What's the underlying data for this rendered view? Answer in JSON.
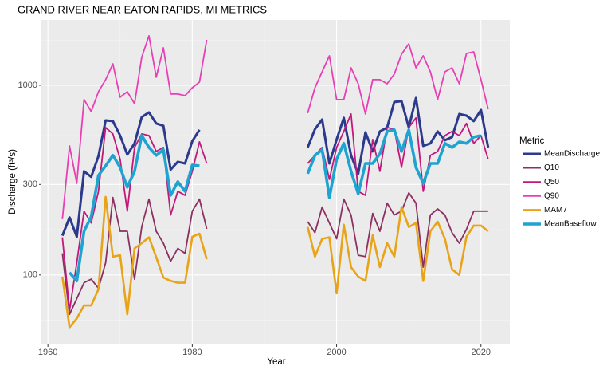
{
  "chart_data": {
    "type": "line",
    "title": "GRAND RIVER NEAR EATON RAPIDS, MI  METRICS",
    "x_label": "Year",
    "y_label": "Discharge (ft³/s)",
    "legend_title": "Metric",
    "legend_position": "right",
    "log_scale_y": true,
    "grid": true,
    "xlim": [
      1959.1,
      2024
    ],
    "xticks": [
      1960,
      1980,
      2000,
      2020
    ],
    "ylim": [
      43,
      2210
    ],
    "yticks": [
      100,
      300,
      1000
    ],
    "x": [
      1962,
      1963,
      1964,
      1965,
      1966,
      1967,
      1968,
      1969,
      1970,
      1971,
      1972,
      1973,
      1974,
      1975,
      1976,
      1977,
      1978,
      1979,
      1980,
      1981,
      1982,
      1983,
      1984,
      1985,
      1986,
      1987,
      1988,
      1989,
      1990,
      1991,
      1992,
      1993,
      1994,
      1995,
      1996,
      1997,
      1998,
      1999,
      2000,
      2001,
      2002,
      2003,
      2004,
      2005,
      2006,
      2007,
      2008,
      2009,
      2010,
      2011,
      2012,
      2013,
      2014,
      2015,
      2016,
      2017,
      2018,
      2019,
      2020,
      2021
    ],
    "series": [
      {
        "name": "MeanDischarge",
        "color": "#2b3a8c",
        "values": [
          161,
          201,
          159,
          352,
          329,
          423,
          653,
          647,
          543,
          431,
          494,
          679,
          720,
          629,
          611,
          359,
          395,
          387,
          508,
          582,
          null,
          null,
          null,
          null,
          null,
          null,
          null,
          null,
          null,
          null,
          null,
          null,
          null,
          null,
          470,
          587,
          660,
          387,
          518,
          673,
          427,
          342,
          565,
          448,
          571,
          599,
          816,
          824,
          599,
          857,
          479,
          494,
          571,
          513,
          533,
          706,
          692,
          647,
          741,
          470
        ]
      },
      {
        "name": "Q10",
        "color": "#8b3060",
        "values": [
          130,
          62,
          75,
          91,
          95,
          85,
          116,
          256,
          170,
          170,
          95,
          179,
          251,
          170,
          147,
          118,
          138,
          130,
          217,
          251,
          175,
          null,
          null,
          null,
          null,
          null,
          null,
          null,
          null,
          null,
          null,
          null,
          null,
          null,
          191,
          167,
          228,
          188,
          155,
          251,
          207,
          127,
          125,
          211,
          170,
          239,
          207,
          217,
          271,
          239,
          110,
          207,
          223,
          207,
          167,
          147,
          174,
          217,
          217,
          217
        ]
      },
      {
        "name": "Q50",
        "color": "#c2187a",
        "values": [
          158,
          65,
          116,
          217,
          188,
          276,
          599,
          554,
          407,
          217,
          470,
          554,
          543,
          448,
          470,
          207,
          276,
          263,
          352,
          503,
          387,
          null,
          null,
          null,
          null,
          null,
          null,
          null,
          null,
          null,
          null,
          null,
          null,
          null,
          387,
          427,
          470,
          319,
          470,
          571,
          706,
          276,
          263,
          518,
          352,
          599,
          587,
          369,
          599,
          673,
          276,
          427,
          448,
          543,
          571,
          543,
          629,
          494,
          543,
          407
        ]
      },
      {
        "name": "Q90",
        "color": "#e83fb5",
        "values": [
          197,
          479,
          304,
          840,
          727,
          925,
          1070,
          1297,
          865,
          925,
          800,
          1403,
          1823,
          1102,
          1575,
          899,
          899,
          882,
          971,
          1040,
          1735,
          null,
          null,
          null,
          null,
          null,
          null,
          null,
          null,
          null,
          null,
          null,
          null,
          null,
          713,
          971,
          1178,
          1430,
          840,
          840,
          1237,
          1019,
          706,
          1070,
          1070,
          1019,
          1145,
          1459,
          1653,
          1237,
          1430,
          1178,
          840,
          1178,
          1237,
          1019,
          1472,
          1501,
          1070,
          748
        ]
      },
      {
        "name": "MAM7",
        "color": "#e8a317",
        "values": [
          98,
          53,
          59,
          69,
          69,
          84,
          258,
          125,
          127,
          62,
          138,
          147,
          158,
          124,
          97,
          93,
          91,
          91,
          159,
          165,
          121,
          null,
          null,
          null,
          null,
          null,
          null,
          null,
          null,
          null,
          null,
          null,
          null,
          null,
          179,
          125,
          155,
          158,
          80,
          184,
          110,
          98,
          93,
          162,
          110,
          147,
          125,
          228,
          179,
          188,
          93,
          170,
          191,
          155,
          107,
          100,
          159,
          182,
          182,
          170
        ]
      },
      {
        "name": "MeanBaseflow",
        "color": "#1fa3d1",
        "values": [
          null,
          103,
          93,
          170,
          203,
          335,
          376,
          427,
          369,
          290,
          352,
          543,
          470,
          427,
          457,
          263,
          310,
          276,
          380,
          376,
          null,
          null,
          null,
          null,
          null,
          null,
          null,
          null,
          null,
          null,
          null,
          null,
          null,
          null,
          342,
          427,
          457,
          256,
          407,
          494,
          352,
          268,
          387,
          387,
          435,
          571,
          582,
          448,
          582,
          369,
          304,
          387,
          387,
          494,
          470,
          503,
          494,
          533,
          543,
          null
        ]
      }
    ]
  }
}
